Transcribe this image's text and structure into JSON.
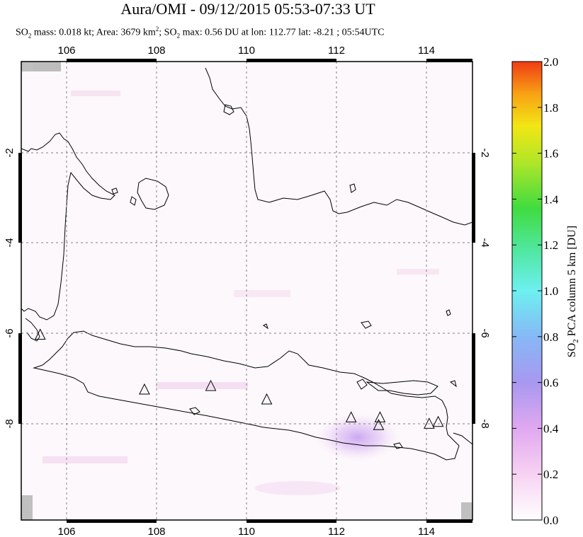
{
  "title": "Aura/OMI - 09/12/2015 05:53-07:33 UT",
  "subtitle": {
    "so2_mass": "SO",
    "mass_rest": " mass: 0.018 kt; Area: 3679 km",
    "area_exp": "2",
    "max_pre": "; SO",
    "max_rest": " max: 0.56 DU at lon: 112.77 lat: -8.21 ; 05:54UTC",
    "sub2": "2"
  },
  "map": {
    "lon_ticks": [
      "106",
      "108",
      "110",
      "112",
      "114"
    ],
    "lat_ticks": [
      "-2",
      "-4",
      "-6",
      "-8"
    ],
    "lon_range": [
      105,
      115
    ],
    "lat_range": [
      -10.2,
      0.0
    ],
    "volcanoes": [
      {
        "lon": 105.42,
        "lat": -6.1
      },
      {
        "lon": 107.73,
        "lat": -7.32
      },
      {
        "lon": 109.2,
        "lat": -7.24
      },
      {
        "lon": 110.44,
        "lat": -7.54
      },
      {
        "lon": 112.31,
        "lat": -7.94
      },
      {
        "lon": 112.95,
        "lat": -7.94
      },
      {
        "lon": 112.92,
        "lat": -8.11
      },
      {
        "lon": 114.04,
        "lat": -8.08
      },
      {
        "lon": 114.24,
        "lat": -8.04
      }
    ],
    "so2_max": {
      "lon": 112.77,
      "lat": -8.21,
      "value": 0.56
    }
  },
  "colorbar": {
    "ticks": [
      "0.0",
      "0.2",
      "0.4",
      "0.6",
      "0.8",
      "1.0",
      "1.2",
      "1.4",
      "1.6",
      "1.8",
      "2.0"
    ],
    "label_pre": "SO",
    "label_sub": "2",
    "label_rest": " PCA column 5 km [DU]",
    "colors": [
      "#ffffff",
      "#f7c8f0",
      "#c89cf0",
      "#8c8cf0",
      "#78c8f8",
      "#6ef0f0",
      "#50e89a",
      "#3cdc3c",
      "#b4e628",
      "#f0e614",
      "#f8a014",
      "#f03c14"
    ]
  }
}
